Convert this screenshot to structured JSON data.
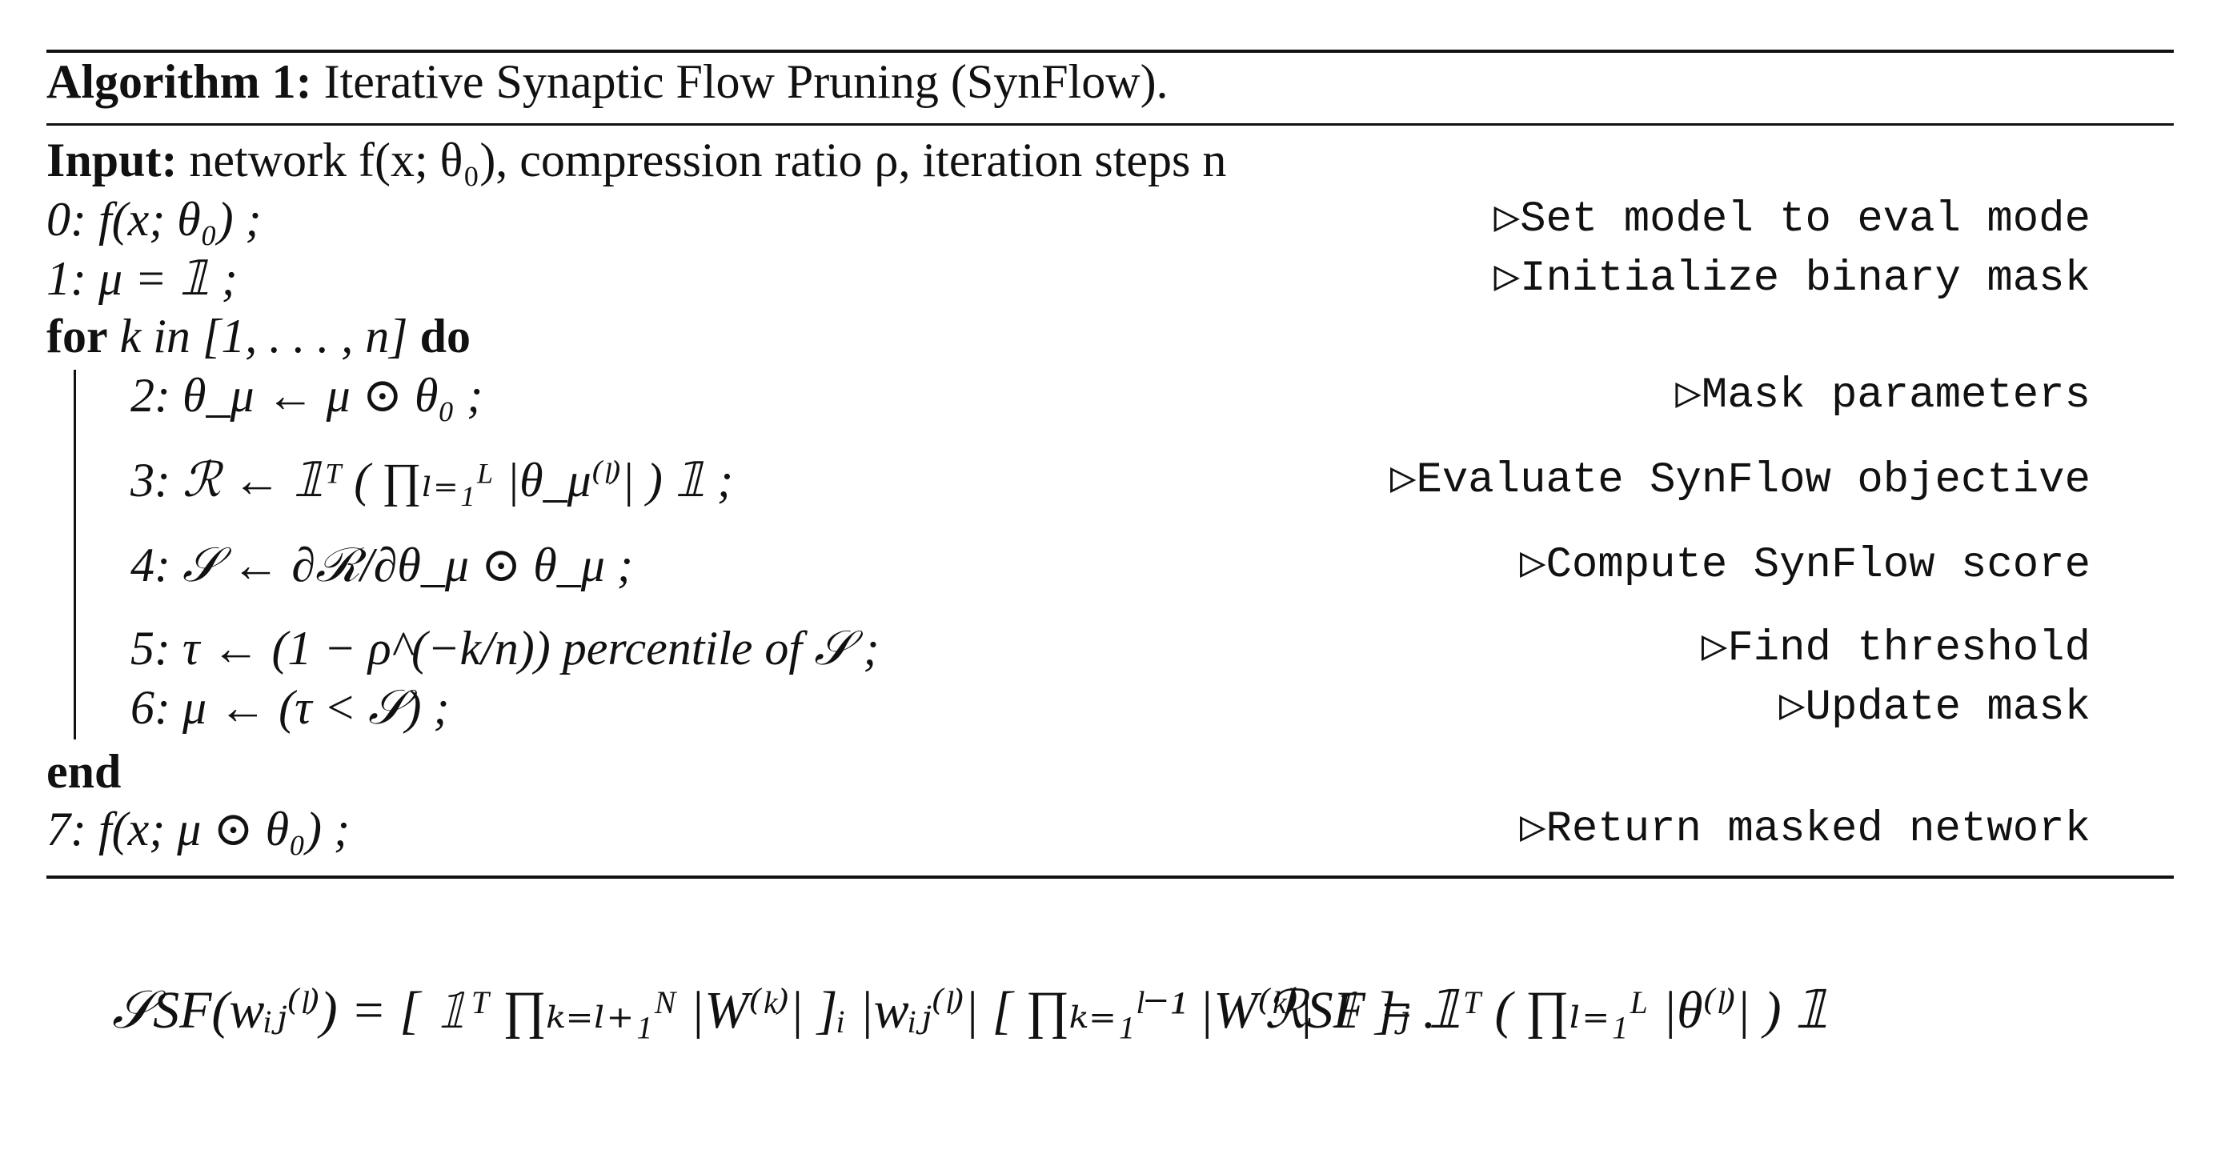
{
  "algorithm": {
    "label": "Algorithm 1:",
    "title": "Iterative Synaptic Flow Pruning (SynFlow)."
  },
  "input": {
    "label": "Input:",
    "text": "network f(x; θ₀), compression ratio ρ, iteration steps n"
  },
  "pre_steps": [
    {
      "text": "0: f(x; θ₀) ;",
      "comment": "▷Set model to eval mode"
    },
    {
      "text": "1: μ = 𝟙 ;",
      "comment": "▷Initialize binary mask"
    }
  ],
  "loop": {
    "for": "for",
    "range": "k in [1, . . . , n]",
    "do": "do",
    "steps": [
      {
        "text": "2: θ_μ ← μ ⊙ θ₀ ;",
        "comment": "▷Mask parameters"
      },
      {
        "text": "3: ℛ ← 𝟙ᵀ ( ∏ₗ₌₁ᴸ |θ_μ⁽ˡ⁾| ) 𝟙 ;",
        "comment": "▷Evaluate SynFlow objective"
      },
      {
        "text": "4: 𝒮 ← ∂ℛ/∂θ_μ ⊙ θ_μ ;",
        "comment": "▷Compute SynFlow score"
      },
      {
        "text": "5: τ ← (1 − ρ^(−k/n)) percentile of 𝒮 ;",
        "comment": "▷Find threshold"
      },
      {
        "text": "6: μ ← (τ < 𝒮) ;",
        "comment": "▷Update mask"
      }
    ],
    "end": "end"
  },
  "post_steps": [
    {
      "text": "7: f(x; μ ⊙ θ₀) ;",
      "comment": "▷Return masked network"
    }
  ],
  "equations": [
    "𝒮SF(wᵢⱼ⁽ˡ⁾) = [ 𝟙ᵀ ∏ₖ₌ₗ₊₁ᴺ |W⁽ᵏ⁾| ]ᵢ |wᵢⱼ⁽ˡ⁾| [ ∏ₖ₌₁ˡ⁻¹ |W⁽ᵏ⁾| 𝟙 ]ⱼ .",
    "ℛSF = 𝟙ᵀ ( ∏ₗ₌₁ᴸ |θ⁽ˡ⁾| ) 𝟙"
  ]
}
